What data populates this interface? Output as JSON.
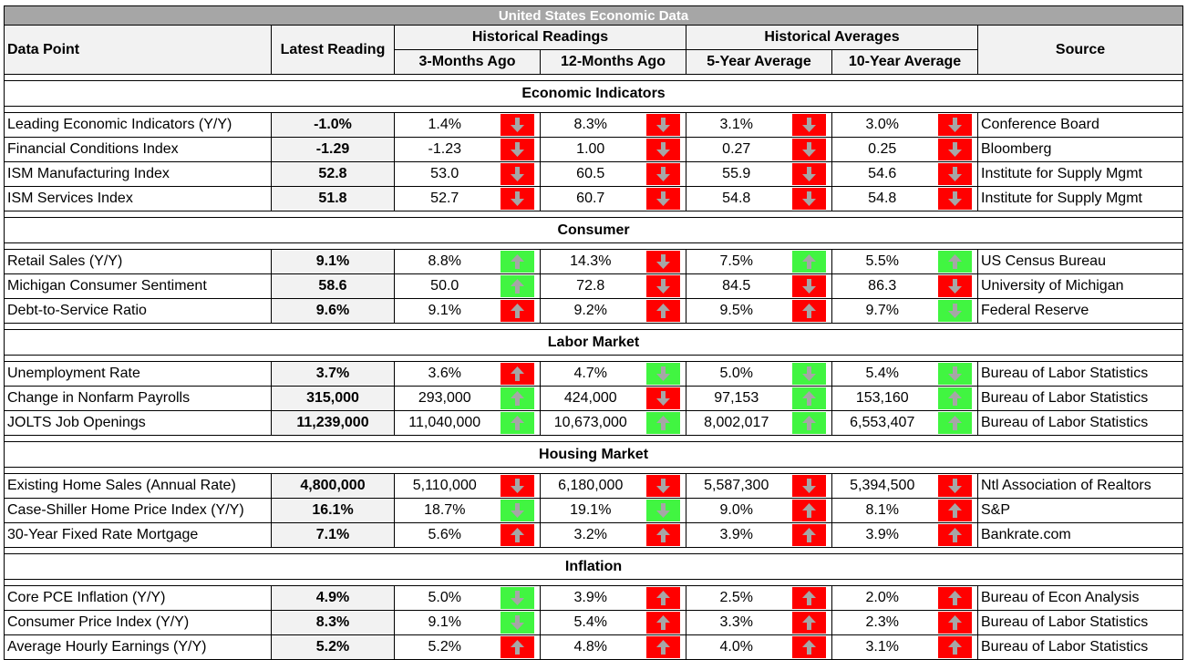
{
  "title": "United States Economic Data",
  "headers": {
    "data_point": "Data Point",
    "latest": "Latest  Reading",
    "hist_readings": "Historical Readings",
    "hist_averages": "Historical Averages",
    "source": "Source",
    "m3": "3-Months Ago",
    "m12": "12-Months Ago",
    "y5": "5-Year Average",
    "y10": "10-Year Average"
  },
  "colors": {
    "red": "#ff0000",
    "green": "#41f541",
    "arrow": "#a6a6a6",
    "header_bg": "#f2f2f2",
    "title_bg": "#a6a6a6"
  },
  "sections": [
    {
      "name": "Economic Indicators",
      "rows": [
        {
          "name": "Leading Economic Indicators (Y/Y)",
          "latest": "-1.0%",
          "vals": [
            [
              "1.4%",
              "down",
              "red"
            ],
            [
              "8.3%",
              "down",
              "red"
            ],
            [
              "3.1%",
              "down",
              "red"
            ],
            [
              "3.0%",
              "down",
              "red"
            ]
          ],
          "source": "Conference Board"
        },
        {
          "name": "Financial Conditions Index",
          "latest": "-1.29",
          "vals": [
            [
              "-1.23",
              "down",
              "red"
            ],
            [
              "1.00",
              "down",
              "red"
            ],
            [
              "0.27",
              "down",
              "red"
            ],
            [
              "0.25",
              "down",
              "red"
            ]
          ],
          "source": "Bloomberg"
        },
        {
          "name": "ISM Manufacturing Index",
          "latest": "52.8",
          "vals": [
            [
              "53.0",
              "down",
              "red"
            ],
            [
              "60.5",
              "down",
              "red"
            ],
            [
              "55.9",
              "down",
              "red"
            ],
            [
              "54.6",
              "down",
              "red"
            ]
          ],
          "source": "Institute for Supply Mgmt"
        },
        {
          "name": "ISM Services Index",
          "latest": "51.8",
          "vals": [
            [
              "52.7",
              "down",
              "red"
            ],
            [
              "60.7",
              "down",
              "red"
            ],
            [
              "54.8",
              "down",
              "red"
            ],
            [
              "54.8",
              "down",
              "red"
            ]
          ],
          "source": "Institute for Supply Mgmt"
        }
      ]
    },
    {
      "name": "Consumer",
      "rows": [
        {
          "name": "Retail Sales (Y/Y)",
          "latest": "9.1%",
          "vals": [
            [
              "8.8%",
              "up",
              "green"
            ],
            [
              "14.3%",
              "down",
              "red"
            ],
            [
              "7.5%",
              "up",
              "green"
            ],
            [
              "5.5%",
              "up",
              "green"
            ]
          ],
          "source": "US Census Bureau"
        },
        {
          "name": "Michigan Consumer Sentiment",
          "latest": "58.6",
          "vals": [
            [
              "50.0",
              "up",
              "green"
            ],
            [
              "72.8",
              "down",
              "red"
            ],
            [
              "84.5",
              "down",
              "red"
            ],
            [
              "86.3",
              "down",
              "red"
            ]
          ],
          "source": "University of Michigan"
        },
        {
          "name": "Debt-to-Service Ratio",
          "latest": "9.6%",
          "vals": [
            [
              "9.1%",
              "up",
              "red"
            ],
            [
              "9.2%",
              "up",
              "red"
            ],
            [
              "9.5%",
              "up",
              "red"
            ],
            [
              "9.7%",
              "down",
              "green"
            ]
          ],
          "source": "Federal Reserve"
        }
      ]
    },
    {
      "name": "Labor Market",
      "rows": [
        {
          "name": "Unemployment Rate",
          "latest": "3.7%",
          "vals": [
            [
              "3.6%",
              "up",
              "red"
            ],
            [
              "4.7%",
              "down",
              "green"
            ],
            [
              "5.0%",
              "down",
              "green"
            ],
            [
              "5.4%",
              "down",
              "green"
            ]
          ],
          "source": "Bureau of Labor Statistics"
        },
        {
          "name": "Change in Nonfarm Payrolls",
          "latest": "315,000",
          "vals": [
            [
              "293,000",
              "up",
              "green"
            ],
            [
              "424,000",
              "down",
              "red"
            ],
            [
              "97,153",
              "up",
              "green"
            ],
            [
              "153,160",
              "up",
              "green"
            ]
          ],
          "source": "Bureau of Labor Statistics"
        },
        {
          "name": "JOLTS Job Openings",
          "latest": "11,239,000",
          "vals": [
            [
              "11,040,000",
              "up",
              "green"
            ],
            [
              "10,673,000",
              "up",
              "green"
            ],
            [
              "8,002,017",
              "up",
              "green"
            ],
            [
              "6,553,407",
              "up",
              "green"
            ]
          ],
          "source": "Bureau of Labor Statistics"
        }
      ]
    },
    {
      "name": "Housing Market",
      "rows": [
        {
          "name": "Existing Home Sales (Annual Rate)",
          "latest": "4,800,000",
          "vals": [
            [
              "5,110,000",
              "down",
              "red"
            ],
            [
              "6,180,000",
              "down",
              "red"
            ],
            [
              "5,587,300",
              "down",
              "red"
            ],
            [
              "5,394,500",
              "down",
              "red"
            ]
          ],
          "source": "Ntl Association of Realtors"
        },
        {
          "name": "Case-Shiller Home Price Index (Y/Y)",
          "latest": "16.1%",
          "vals": [
            [
              "18.7%",
              "down",
              "green"
            ],
            [
              "19.1%",
              "down",
              "green"
            ],
            [
              "9.0%",
              "up",
              "red"
            ],
            [
              "8.1%",
              "up",
              "red"
            ]
          ],
          "source": "S&P"
        },
        {
          "name": "30-Year Fixed Rate Mortgage",
          "latest": "7.1%",
          "vals": [
            [
              "5.6%",
              "up",
              "red"
            ],
            [
              "3.2%",
              "up",
              "red"
            ],
            [
              "3.9%",
              "up",
              "red"
            ],
            [
              "3.9%",
              "up",
              "red"
            ]
          ],
          "source": "Bankrate.com"
        }
      ]
    },
    {
      "name": "Inflation",
      "rows": [
        {
          "name": "Core PCE Inflation (Y/Y)",
          "latest": "4.9%",
          "vals": [
            [
              "5.0%",
              "down",
              "green"
            ],
            [
              "3.9%",
              "up",
              "red"
            ],
            [
              "2.5%",
              "up",
              "red"
            ],
            [
              "2.0%",
              "up",
              "red"
            ]
          ],
          "source": "Bureau of Econ Analysis"
        },
        {
          "name": "Consumer Price Index (Y/Y)",
          "latest": "8.3%",
          "vals": [
            [
              "9.1%",
              "down",
              "green"
            ],
            [
              "5.4%",
              "up",
              "red"
            ],
            [
              "3.3%",
              "up",
              "red"
            ],
            [
              "2.3%",
              "up",
              "red"
            ]
          ],
          "source": "Bureau of Labor Statistics"
        },
        {
          "name": "Average Hourly Earnings (Y/Y)",
          "latest": "5.2%",
          "vals": [
            [
              "5.2%",
              "up",
              "red"
            ],
            [
              "4.8%",
              "up",
              "red"
            ],
            [
              "4.0%",
              "up",
              "red"
            ],
            [
              "3.1%",
              "up",
              "red"
            ]
          ],
          "source": "Bureau of Labor Statistics"
        }
      ]
    }
  ]
}
